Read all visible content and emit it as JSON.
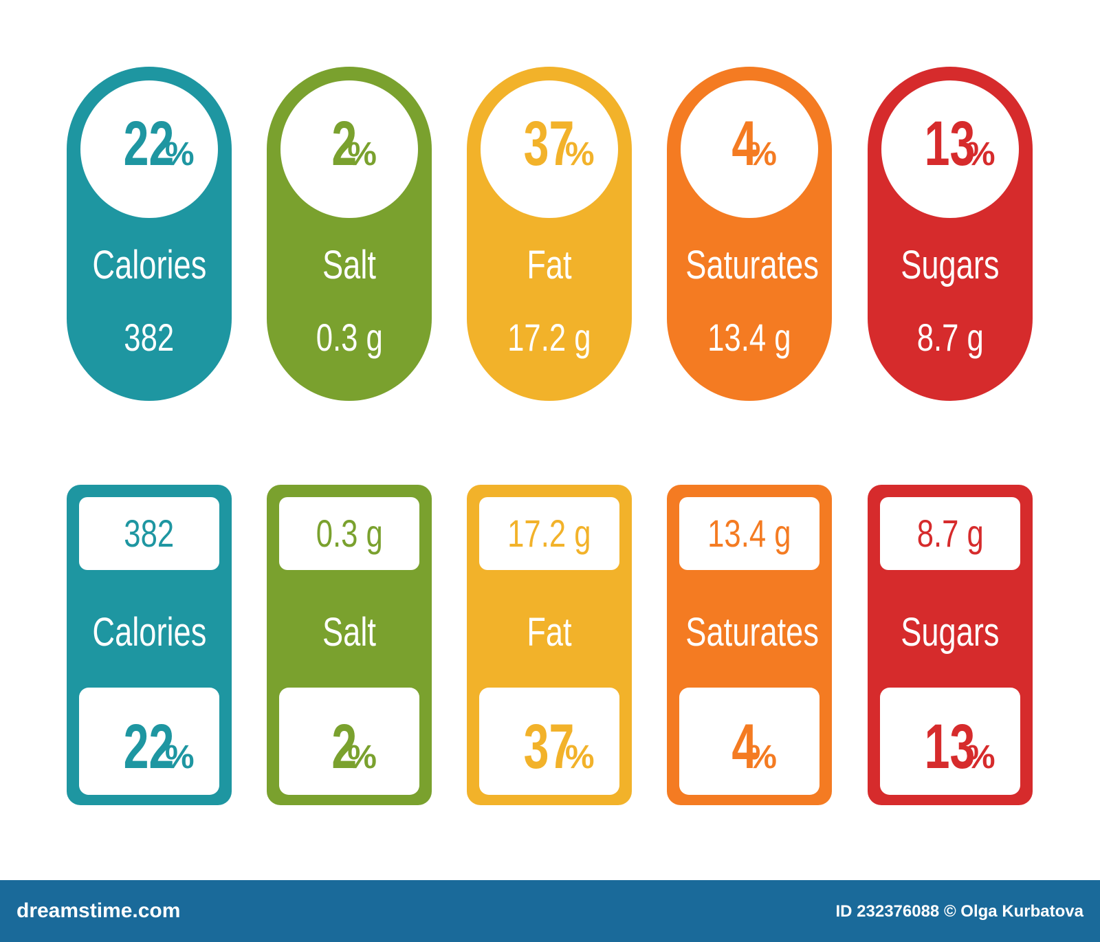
{
  "colors": {
    "teal": "#1e96a1",
    "green": "#7aa12e",
    "yellow": "#f2b22a",
    "orange": "#f47b22",
    "red": "#d62b2c",
    "footer": "#1a6a9a"
  },
  "nutrients": [
    {
      "name": "Calories",
      "percent": "22",
      "amount": "382",
      "color": "#1e96a1"
    },
    {
      "name": "Salt",
      "percent": "2",
      "amount": "0.3 g",
      "color": "#7aa12e"
    },
    {
      "name": "Fat",
      "percent": "37",
      "amount": "17.2 g",
      "color": "#f2b22a"
    },
    {
      "name": "Saturates",
      "percent": "4",
      "amount": "13.4 g",
      "color": "#f47b22"
    },
    {
      "name": "Sugars",
      "percent": "13",
      "amount": "8.7 g",
      "color": "#d62b2c"
    }
  ],
  "percent_sign": "%",
  "footer": {
    "brand": "dreamstime.com",
    "credit": "ID 232376088 © Olga Kurbatova"
  }
}
